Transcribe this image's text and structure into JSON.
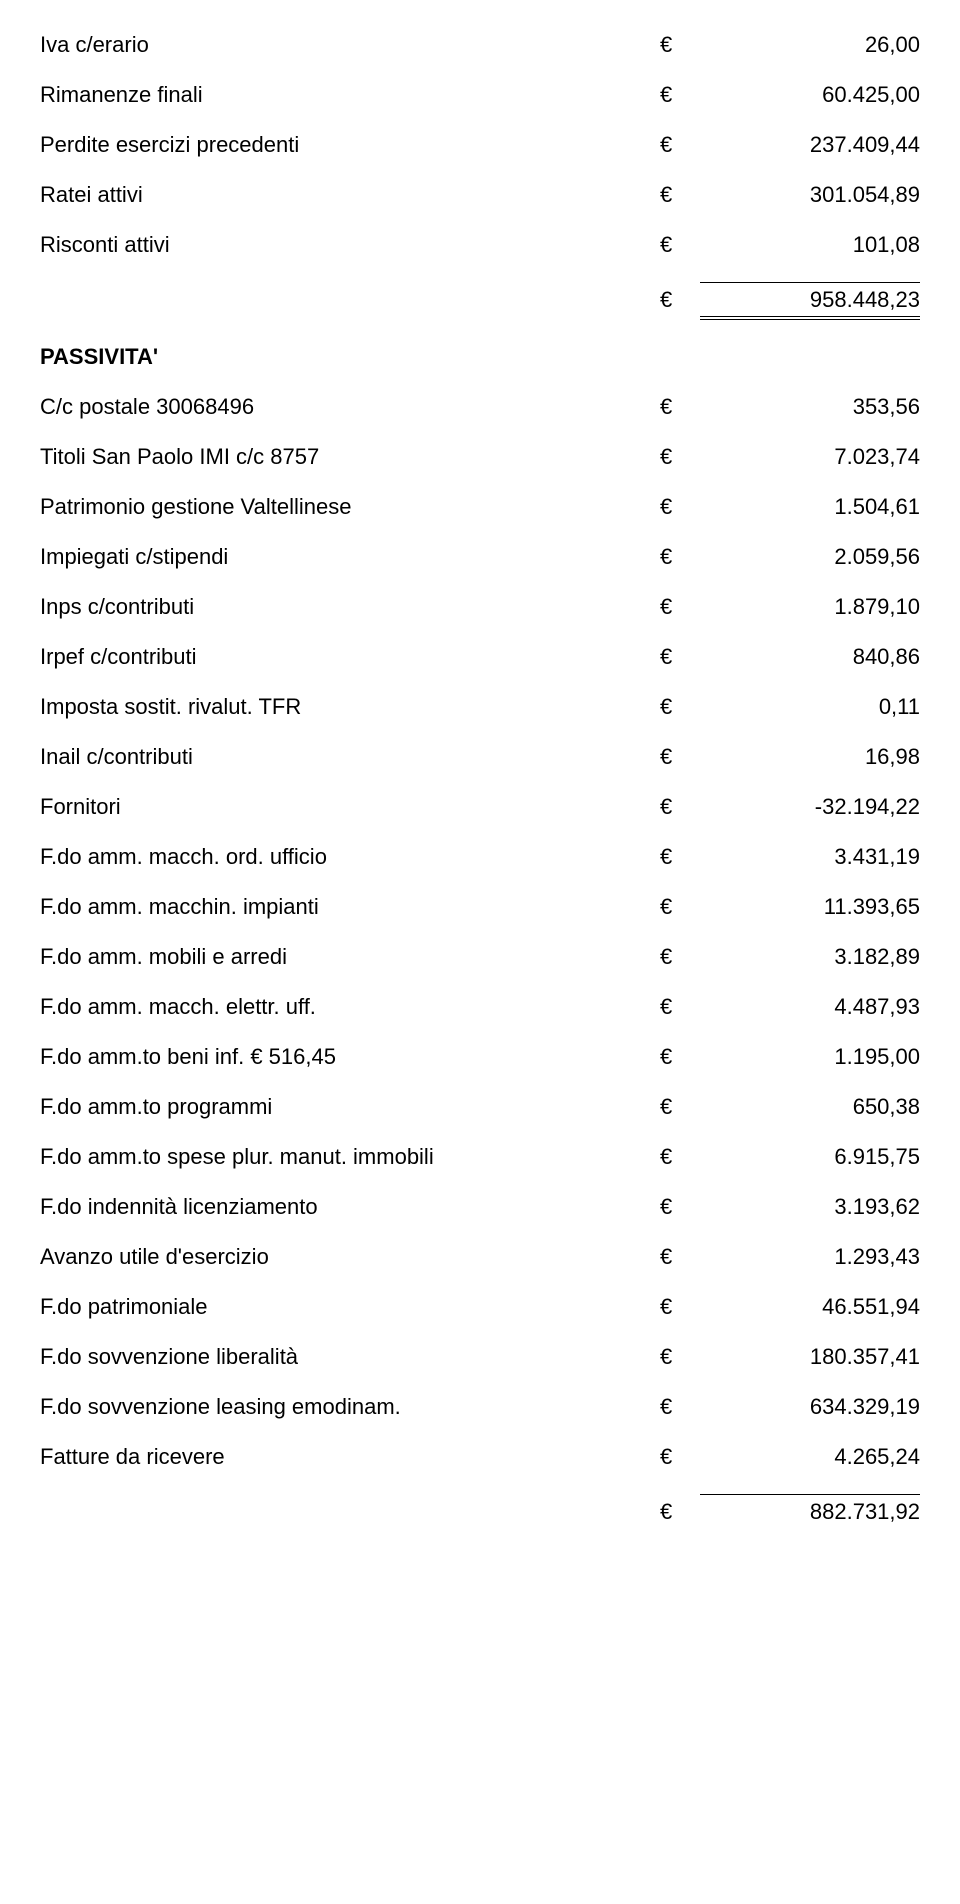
{
  "currency": "€",
  "attivo_rows": [
    {
      "label": "Iva c/erario",
      "value": "26,00"
    },
    {
      "label": "Rimanenze finali",
      "value": "60.425,00"
    },
    {
      "label": "Perdite esercizi precedenti",
      "value": "237.409,44"
    },
    {
      "label": "Ratei attivi",
      "value": "301.054,89"
    },
    {
      "label": "Risconti attivi",
      "value": "101,08"
    }
  ],
  "attivo_subtotal": "958.448,23",
  "passivita_heading": "PASSIVITA'",
  "passivita_rows": [
    {
      "label": "C/c postale 30068496",
      "value": "353,56"
    },
    {
      "label": "Titoli San Paolo IMI c/c 8757",
      "value": "7.023,74"
    },
    {
      "label": "Patrimonio gestione Valtellinese",
      "value": "1.504,61"
    },
    {
      "label": "Impiegati c/stipendi",
      "value": "2.059,56"
    },
    {
      "label": "Inps c/contributi",
      "value": "1.879,10"
    },
    {
      "label": "Irpef c/contributi",
      "value": "840,86"
    },
    {
      "label": "Imposta sostit. rivalut. TFR",
      "value": "0,11"
    },
    {
      "label": "Inail c/contributi",
      "value": "16,98"
    },
    {
      "label": "Fornitori",
      "value": "-32.194,22"
    },
    {
      "label": "F.do amm. macch. ord. ufficio",
      "value": "3.431,19"
    },
    {
      "label": "F.do amm. macchin. impianti",
      "value": "11.393,65"
    },
    {
      "label": "F.do amm. mobili e arredi",
      "value": "3.182,89"
    },
    {
      "label": "F.do amm. macch. elettr. uff.",
      "value": "4.487,93"
    },
    {
      "label": "F.do amm.to beni inf. € 516,45",
      "value": "1.195,00"
    },
    {
      "label": "F.do amm.to programmi",
      "value": "650,38"
    },
    {
      "label": "F.do amm.to spese plur. manut. immobili",
      "value": "6.915,75"
    },
    {
      "label": "F.do indennità licenziamento",
      "value": "3.193,62"
    },
    {
      "label": "Avanzo utile d'esercizio",
      "value": "1.293,43"
    },
    {
      "label": "F.do patrimoniale",
      "value": "46.551,94"
    },
    {
      "label": "F.do sovvenzione liberalità",
      "value": "180.357,41"
    },
    {
      "label": "F.do sovvenzione leasing emodinam.",
      "value": "634.329,19"
    },
    {
      "label": "Fatture da ricevere",
      "value": "4.265,24"
    }
  ],
  "passivita_total": "882.731,92"
}
